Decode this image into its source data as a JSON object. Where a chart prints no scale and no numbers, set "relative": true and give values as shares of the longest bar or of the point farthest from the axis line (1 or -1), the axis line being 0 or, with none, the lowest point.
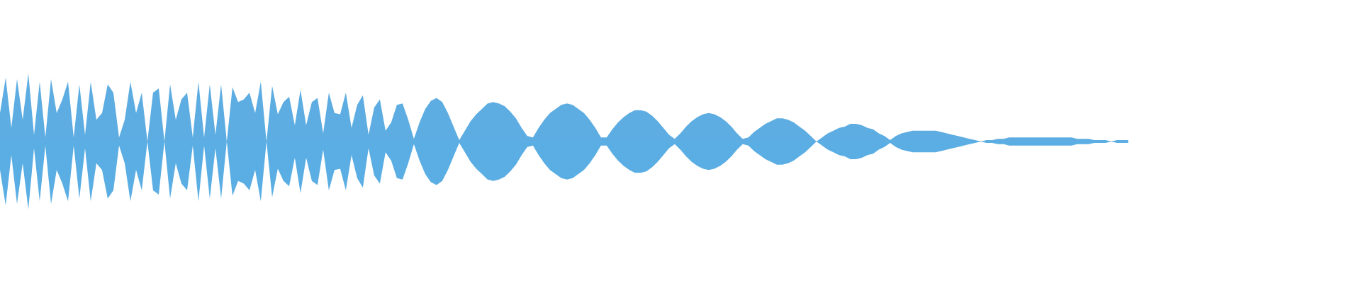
{
  "chart_data": {
    "type": "area",
    "relative": true,
    "categories": [
      null,
      null,
      null,
      null,
      null,
      null,
      null,
      null,
      null,
      null,
      null,
      null,
      null,
      null,
      null,
      null,
      null,
      null,
      null,
      null,
      null,
      null,
      null,
      null,
      null,
      null,
      null,
      null,
      null,
      null,
      null,
      null,
      null,
      null,
      null,
      null,
      null,
      null,
      null,
      null,
      null,
      null,
      null,
      null,
      null,
      null,
      null,
      null,
      null,
      null,
      null,
      null,
      null,
      null,
      null,
      null,
      null,
      null,
      null,
      null,
      null,
      null,
      null,
      null,
      null,
      null,
      null,
      null,
      null,
      null,
      null,
      null,
      null,
      null,
      null,
      null,
      null,
      null,
      null,
      null,
      null,
      null,
      null,
      null,
      null,
      null,
      null,
      null,
      null,
      null,
      null,
      null,
      null,
      null,
      null,
      null,
      null,
      null,
      null,
      null,
      null,
      null,
      null,
      null,
      null,
      null,
      null,
      null,
      null,
      null,
      null,
      null,
      null,
      null,
      null,
      null,
      null,
      null,
      null,
      null,
      null,
      null,
      null,
      null,
      null,
      null,
      null,
      null,
      null,
      null,
      null,
      null,
      null,
      null,
      null,
      null,
      null,
      null,
      null,
      null,
      null,
      null,
      null,
      null,
      null,
      null,
      null,
      null,
      null,
      null,
      null,
      null,
      null,
      null,
      null,
      null,
      null,
      null,
      null,
      null,
      null,
      null,
      null,
      null,
      null,
      null,
      null,
      null,
      null,
      null,
      null,
      null,
      null,
      null,
      null,
      null,
      null,
      null,
      null,
      null,
      null,
      null,
      null,
      null,
      null,
      null,
      null,
      null,
      null,
      null,
      null,
      null,
      null,
      null,
      null,
      null,
      null,
      null,
      null,
      null
    ],
    "series": [
      {
        "color": "#5dade2",
        "values": [
          0.42,
          0.94,
          0.2,
          0.92,
          0.32,
          1,
          0.1,
          0.88,
          0.06,
          0.92,
          0.42,
          0.62,
          0.88,
          0.06,
          0.84,
          0.1,
          0.88,
          0.32,
          0.42,
          0.84,
          0.72,
          0.06,
          0.32,
          0.88,
          0.42,
          0.72,
          0,
          0.72,
          0.78,
          0,
          0.84,
          0.32,
          0.62,
          0.72,
          0.06,
          0.88,
          0.06,
          0.84,
          0.1,
          0.84,
          0,
          0.8,
          0.58,
          0.62,
          0.72,
          0.42,
          0.88,
          0,
          0.82,
          0.4,
          0.58,
          0.66,
          0.24,
          0.76,
          0.24,
          0.58,
          0.64,
          0.12,
          0.72,
          0.42,
          0.4,
          0.72,
          0.2,
          0.54,
          0.68,
          0.1,
          0.5,
          0.62,
          0.16,
          0.28,
          0.54,
          0.56,
          0.32,
          0.04,
          0.28,
          0.48,
          0.6,
          0.64,
          0.58,
          0.42,
          0.22,
          0.02,
          0.16,
          0.3,
          0.4,
          0.48,
          0.56,
          0.58,
          0.56,
          0.52,
          0.44,
          0.34,
          0.2,
          0.08,
          0.06,
          0.2,
          0.32,
          0.42,
          0.48,
          0.54,
          0.56,
          0.54,
          0.48,
          0.42,
          0.32,
          0.2,
          0.06,
          0.06,
          0.18,
          0.28,
          0.36,
          0.42,
          0.46,
          0.46,
          0.44,
          0.38,
          0.3,
          0.2,
          0.1,
          0.04,
          0.12,
          0.22,
          0.3,
          0.36,
          0.4,
          0.42,
          0.4,
          0.36,
          0.3,
          0.22,
          0.12,
          0.04,
          0.06,
          0.14,
          0.2,
          0.26,
          0.3,
          0.34,
          0.34,
          0.32,
          0.28,
          0.22,
          0.16,
          0.08,
          0,
          0.06,
          0.12,
          0.16,
          0.2,
          0.22,
          0.26,
          0.26,
          0.24,
          0.2,
          0.18,
          0.12,
          0.08,
          0.02,
          0.08,
          0.12,
          0.14,
          0.16,
          0.16,
          0.16,
          0.16,
          0.16,
          0.14,
          0.12,
          0.1,
          0.08,
          0.06,
          0.04,
          0.02,
          0,
          0.02,
          0.02,
          0.04,
          0.04,
          0.06,
          0.06,
          0.06,
          0.06,
          0.06,
          0.06,
          0.06,
          0.06,
          0.06,
          0.06,
          0.06,
          0.06,
          0.04,
          0.04,
          0.04,
          0.02,
          0.02,
          0.02,
          0,
          0.02,
          0.02,
          0.02
        ]
      },
      {
        "color": "#5baee3",
        "values": [
          -0.42,
          -0.94,
          -0.2,
          -0.92,
          -0.32,
          -1,
          -0.1,
          -0.88,
          -0.06,
          -0.92,
          -0.42,
          -0.62,
          -0.88,
          -0.06,
          -0.84,
          -0.1,
          -0.88,
          -0.32,
          -0.42,
          -0.84,
          -0.72,
          -0.06,
          -0.32,
          -0.88,
          -0.42,
          -0.72,
          0,
          -0.72,
          -0.78,
          0,
          -0.84,
          -0.32,
          -0.62,
          -0.72,
          -0.06,
          -0.88,
          -0.06,
          -0.84,
          -0.1,
          -0.84,
          0,
          -0.8,
          -0.58,
          -0.62,
          -0.72,
          -0.42,
          -0.88,
          0,
          -0.82,
          -0.4,
          -0.58,
          -0.66,
          -0.24,
          -0.76,
          -0.24,
          -0.58,
          -0.64,
          -0.12,
          -0.72,
          -0.42,
          -0.4,
          -0.72,
          -0.2,
          -0.54,
          -0.68,
          -0.1,
          -0.5,
          -0.62,
          -0.16,
          -0.28,
          -0.54,
          -0.56,
          -0.32,
          -0.04,
          -0.28,
          -0.48,
          -0.6,
          -0.64,
          -0.58,
          -0.42,
          -0.22,
          -0.02,
          -0.16,
          -0.3,
          -0.4,
          -0.48,
          -0.56,
          -0.58,
          -0.56,
          -0.52,
          -0.44,
          -0.34,
          -0.2,
          -0.08,
          -0.06,
          -0.2,
          -0.32,
          -0.42,
          -0.48,
          -0.54,
          -0.56,
          -0.54,
          -0.48,
          -0.42,
          -0.32,
          -0.2,
          -0.06,
          -0.06,
          -0.18,
          -0.28,
          -0.36,
          -0.42,
          -0.46,
          -0.46,
          -0.44,
          -0.38,
          -0.3,
          -0.2,
          -0.1,
          -0.04,
          -0.12,
          -0.22,
          -0.3,
          -0.36,
          -0.4,
          -0.42,
          -0.4,
          -0.36,
          -0.3,
          -0.22,
          -0.12,
          -0.04,
          -0.06,
          -0.14,
          -0.2,
          -0.26,
          -0.3,
          -0.34,
          -0.34,
          -0.32,
          -0.28,
          -0.22,
          -0.16,
          -0.08,
          0,
          -0.06,
          -0.12,
          -0.16,
          -0.2,
          -0.22,
          -0.26,
          -0.26,
          -0.24,
          -0.2,
          -0.18,
          -0.12,
          -0.08,
          -0.02,
          -0.08,
          -0.12,
          -0.14,
          -0.16,
          -0.16,
          -0.16,
          -0.16,
          -0.16,
          -0.14,
          -0.12,
          -0.1,
          -0.08,
          -0.06,
          -0.04,
          -0.02,
          0,
          -0.02,
          -0.02,
          -0.04,
          -0.04,
          -0.06,
          -0.06,
          -0.06,
          -0.06,
          -0.06,
          -0.06,
          -0.06,
          -0.06,
          -0.06,
          -0.06,
          -0.06,
          -0.06,
          -0.04,
          -0.04,
          -0.04,
          -0.02,
          -0.02,
          -0.02,
          0,
          -0.02,
          -0.02,
          -0.02
        ]
      }
    ]
  }
}
